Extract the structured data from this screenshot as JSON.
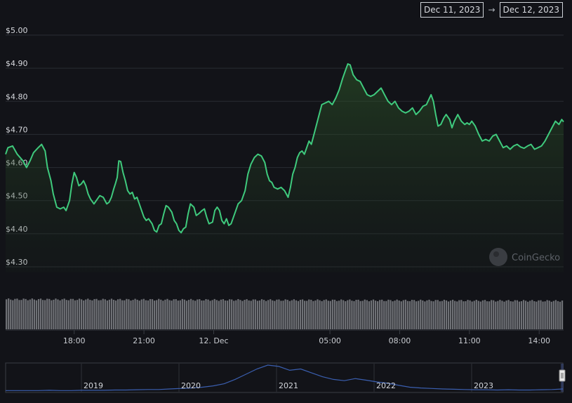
{
  "range_selector": {
    "start": "Dec 11, 2023",
    "arrow": "→",
    "end": "Dec 12, 2023"
  },
  "watermark": "CoinGecko",
  "colors": {
    "line": "#3fca7d",
    "volume": "#6f7176",
    "navigator_line": "#3b5fb0",
    "grid": "#2a2d33"
  },
  "chart_data": {
    "type": "area",
    "title": "",
    "xlabel": "",
    "ylabel": "",
    "y_ticks": [
      "$5.00",
      "$4.90",
      "$4.80",
      "$4.70",
      "$4.60",
      "$4.50",
      "$4.40",
      "$4.30"
    ],
    "ylim": [
      4.27,
      5.02
    ],
    "xlim": [
      0,
      24
    ],
    "x_ticks": [
      {
        "x": 2.95,
        "label": "18:00"
      },
      {
        "x": 5.95,
        "label": "21:00"
      },
      {
        "x": 8.95,
        "label": "12. Dec"
      },
      {
        "x": 13.95,
        "label": "05:00"
      },
      {
        "x": 16.95,
        "label": "08:00"
      },
      {
        "x": 19.95,
        "label": "11:00"
      },
      {
        "x": 22.95,
        "label": "14:00"
      }
    ],
    "series": [
      {
        "values": [
          [
            0.0,
            4.64
          ],
          [
            0.1,
            4.66
          ],
          [
            0.3,
            4.665
          ],
          [
            0.5,
            4.64
          ],
          [
            0.75,
            4.62
          ],
          [
            0.9,
            4.6
          ],
          [
            1.05,
            4.62
          ],
          [
            1.2,
            4.645
          ],
          [
            1.4,
            4.66
          ],
          [
            1.55,
            4.67
          ],
          [
            1.7,
            4.65
          ],
          [
            1.8,
            4.6
          ],
          [
            1.95,
            4.56
          ],
          [
            2.05,
            4.52
          ],
          [
            2.2,
            4.48
          ],
          [
            2.35,
            4.475
          ],
          [
            2.5,
            4.48
          ],
          [
            2.6,
            4.47
          ],
          [
            2.75,
            4.5
          ],
          [
            2.85,
            4.55
          ],
          [
            2.95,
            4.585
          ],
          [
            3.05,
            4.57
          ],
          [
            3.15,
            4.545
          ],
          [
            3.25,
            4.55
          ],
          [
            3.35,
            4.56
          ],
          [
            3.45,
            4.545
          ],
          [
            3.55,
            4.52
          ],
          [
            3.65,
            4.505
          ],
          [
            3.8,
            4.49
          ],
          [
            3.9,
            4.5
          ],
          [
            4.05,
            4.515
          ],
          [
            4.2,
            4.51
          ],
          [
            4.35,
            4.49
          ],
          [
            4.45,
            4.495
          ],
          [
            4.55,
            4.51
          ],
          [
            4.65,
            4.535
          ],
          [
            4.72,
            4.55
          ],
          [
            4.8,
            4.57
          ],
          [
            4.87,
            4.62
          ],
          [
            4.95,
            4.618
          ],
          [
            5.05,
            4.585
          ],
          [
            5.15,
            4.56
          ],
          [
            5.25,
            4.53
          ],
          [
            5.35,
            4.52
          ],
          [
            5.45,
            4.525
          ],
          [
            5.55,
            4.505
          ],
          [
            5.65,
            4.51
          ],
          [
            5.75,
            4.49
          ],
          [
            5.85,
            4.47
          ],
          [
            5.95,
            4.45
          ],
          [
            6.05,
            4.44
          ],
          [
            6.15,
            4.445
          ],
          [
            6.3,
            4.43
          ],
          [
            6.4,
            4.41
          ],
          [
            6.5,
            4.405
          ],
          [
            6.6,
            4.425
          ],
          [
            6.7,
            4.43
          ],
          [
            6.8,
            4.46
          ],
          [
            6.9,
            4.485
          ],
          [
            7.0,
            4.48
          ],
          [
            7.15,
            4.465
          ],
          [
            7.25,
            4.44
          ],
          [
            7.35,
            4.43
          ],
          [
            7.45,
            4.41
          ],
          [
            7.55,
            4.403
          ],
          [
            7.65,
            4.415
          ],
          [
            7.75,
            4.42
          ],
          [
            7.85,
            4.46
          ],
          [
            7.95,
            4.49
          ],
          [
            8.1,
            4.48
          ],
          [
            8.2,
            4.455
          ],
          [
            8.3,
            4.46
          ],
          [
            8.45,
            4.47
          ],
          [
            8.55,
            4.475
          ],
          [
            8.65,
            4.45
          ],
          [
            8.75,
            4.43
          ],
          [
            8.9,
            4.435
          ],
          [
            9.0,
            4.47
          ],
          [
            9.1,
            4.48
          ],
          [
            9.2,
            4.47
          ],
          [
            9.3,
            4.44
          ],
          [
            9.4,
            4.43
          ],
          [
            9.5,
            4.445
          ],
          [
            9.6,
            4.425
          ],
          [
            9.7,
            4.43
          ],
          [
            9.85,
            4.46
          ],
          [
            10.0,
            4.49
          ],
          [
            10.15,
            4.5
          ],
          [
            10.3,
            4.53
          ],
          [
            10.42,
            4.58
          ],
          [
            10.55,
            4.61
          ],
          [
            10.7,
            4.63
          ],
          [
            10.85,
            4.64
          ],
          [
            11.0,
            4.635
          ],
          [
            11.15,
            4.615
          ],
          [
            11.25,
            4.58
          ],
          [
            11.35,
            4.56
          ],
          [
            11.45,
            4.555
          ],
          [
            11.55,
            4.54
          ],
          [
            11.7,
            4.535
          ],
          [
            11.85,
            4.54
          ],
          [
            12.0,
            4.53
          ],
          [
            12.15,
            4.51
          ],
          [
            12.25,
            4.54
          ],
          [
            12.35,
            4.58
          ],
          [
            12.45,
            4.6
          ],
          [
            12.55,
            4.63
          ],
          [
            12.65,
            4.645
          ],
          [
            12.75,
            4.65
          ],
          [
            12.85,
            4.64
          ],
          [
            12.95,
            4.66
          ],
          [
            13.05,
            4.68
          ],
          [
            13.15,
            4.67
          ],
          [
            13.3,
            4.71
          ],
          [
            13.45,
            4.75
          ],
          [
            13.6,
            4.79
          ],
          [
            13.75,
            4.795
          ],
          [
            13.9,
            4.8
          ],
          [
            14.05,
            4.79
          ],
          [
            14.2,
            4.81
          ],
          [
            14.35,
            4.835
          ],
          [
            14.5,
            4.87
          ],
          [
            14.6,
            4.89
          ],
          [
            14.72,
            4.913
          ],
          [
            14.82,
            4.91
          ],
          [
            14.95,
            4.88
          ],
          [
            15.1,
            4.865
          ],
          [
            15.25,
            4.86
          ],
          [
            15.4,
            4.84
          ],
          [
            15.55,
            4.82
          ],
          [
            15.7,
            4.815
          ],
          [
            15.85,
            4.82
          ],
          [
            16.0,
            4.83
          ],
          [
            16.15,
            4.84
          ],
          [
            16.3,
            4.82
          ],
          [
            16.45,
            4.8
          ],
          [
            16.6,
            4.79
          ],
          [
            16.75,
            4.8
          ],
          [
            16.9,
            4.78
          ],
          [
            17.05,
            4.77
          ],
          [
            17.2,
            4.765
          ],
          [
            17.35,
            4.77
          ],
          [
            17.5,
            4.78
          ],
          [
            17.65,
            4.76
          ],
          [
            17.8,
            4.77
          ],
          [
            17.95,
            4.785
          ],
          [
            18.1,
            4.79
          ],
          [
            18.2,
            4.805
          ],
          [
            18.3,
            4.82
          ],
          [
            18.4,
            4.8
          ],
          [
            18.5,
            4.76
          ],
          [
            18.6,
            4.725
          ],
          [
            18.72,
            4.73
          ],
          [
            18.85,
            4.75
          ],
          [
            18.95,
            4.76
          ],
          [
            19.1,
            4.745
          ],
          [
            19.2,
            4.72
          ],
          [
            19.3,
            4.74
          ],
          [
            19.45,
            4.76
          ],
          [
            19.6,
            4.74
          ],
          [
            19.75,
            4.73
          ],
          [
            19.85,
            4.735
          ],
          [
            19.95,
            4.73
          ],
          [
            20.05,
            4.74
          ],
          [
            20.2,
            4.725
          ],
          [
            20.35,
            4.7
          ],
          [
            20.5,
            4.68
          ],
          [
            20.65,
            4.685
          ],
          [
            20.8,
            4.68
          ],
          [
            20.95,
            4.695
          ],
          [
            21.1,
            4.7
          ],
          [
            21.25,
            4.68
          ],
          [
            21.4,
            4.66
          ],
          [
            21.55,
            4.665
          ],
          [
            21.7,
            4.655
          ],
          [
            21.85,
            4.665
          ],
          [
            22.0,
            4.67
          ],
          [
            22.15,
            4.662
          ],
          [
            22.3,
            4.658
          ],
          [
            22.45,
            4.665
          ],
          [
            22.6,
            4.67
          ],
          [
            22.75,
            4.655
          ],
          [
            22.9,
            4.66
          ],
          [
            23.05,
            4.665
          ],
          [
            23.2,
            4.68
          ],
          [
            23.35,
            4.7
          ],
          [
            23.5,
            4.72
          ],
          [
            23.65,
            4.74
          ],
          [
            23.8,
            4.73
          ],
          [
            23.92,
            4.745
          ],
          [
            24.0,
            4.738
          ]
        ]
      }
    ],
    "volume_bars": {
      "count": 260,
      "start": 0.74,
      "end": 0.7
    },
    "navigator": {
      "labels": [
        "2019",
        "2020",
        "2021",
        "2022",
        "2023"
      ],
      "values": [
        0.02,
        0.02,
        0.02,
        0.02,
        0.03,
        0.02,
        0.02,
        0.03,
        0.03,
        0.03,
        0.04,
        0.04,
        0.05,
        0.06,
        0.06,
        0.08,
        0.1,
        0.12,
        0.15,
        0.2,
        0.28,
        0.45,
        0.65,
        0.85,
        1.0,
        0.95,
        0.8,
        0.85,
        0.7,
        0.55,
        0.45,
        0.4,
        0.48,
        0.42,
        0.35,
        0.3,
        0.22,
        0.15,
        0.12,
        0.1,
        0.08,
        0.07,
        0.06,
        0.05,
        0.05,
        0.04,
        0.05,
        0.04,
        0.04,
        0.05,
        0.06,
        0.08
      ]
    }
  }
}
